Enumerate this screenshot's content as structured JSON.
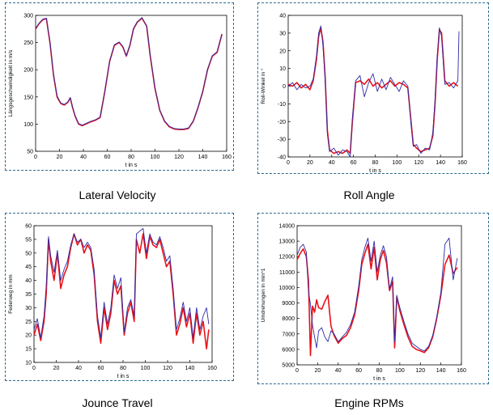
{
  "colors": {
    "frame": "#2e6a8e",
    "series_red": "#e8121a",
    "series_blue": "#2c2ca8",
    "series_purple": "#7a3a9a"
  },
  "captions": [
    "Lateral Velocity",
    "Roll Angle",
    "Jounce Travel",
    "Engine RPMs"
  ],
  "chart_data": [
    {
      "type": "line",
      "title": "Lateral Velocity",
      "xlabel": "t in s",
      "ylabel": "Längsgeschwindigkeit in m/s",
      "xlim": [
        0,
        160
      ],
      "ylim": [
        50,
        300
      ],
      "xticks": [
        0,
        20,
        40,
        60,
        80,
        100,
        120,
        140,
        160
      ],
      "yticks": [
        50,
        100,
        150,
        200,
        250,
        300
      ],
      "grid": false,
      "series": [
        {
          "color": "#e8121a",
          "x": [
            0,
            3,
            6,
            9,
            12,
            15,
            18,
            21,
            24,
            27,
            29,
            31,
            33,
            36,
            39,
            42,
            46,
            50,
            54,
            58,
            62,
            66,
            70,
            73,
            76,
            79,
            82,
            85,
            89,
            93,
            96,
            100,
            104,
            108,
            112,
            116,
            120,
            124,
            128,
            132,
            136,
            140,
            144,
            148,
            152,
            156
          ],
          "y": [
            275,
            285,
            292,
            294,
            250,
            190,
            150,
            138,
            135,
            140,
            148,
            130,
            115,
            100,
            97,
            100,
            104,
            107,
            112,
            160,
            215,
            245,
            250,
            242,
            225,
            245,
            275,
            287,
            295,
            280,
            225,
            165,
            125,
            105,
            95,
            91,
            90,
            90,
            92,
            105,
            130,
            160,
            200,
            225,
            232,
            265
          ]
        },
        {
          "color": "#2c2ca8",
          "x": [
            0,
            3,
            6,
            9,
            12,
            15,
            18,
            21,
            24,
            27,
            29,
            31,
            33,
            36,
            39,
            42,
            46,
            50,
            54,
            58,
            62,
            66,
            70,
            73,
            76,
            79,
            82,
            85,
            89,
            93,
            96,
            100,
            104,
            108,
            112,
            116,
            120,
            124,
            128,
            132,
            136,
            140,
            144,
            148,
            152,
            156
          ],
          "y": [
            276,
            286,
            293,
            295,
            252,
            192,
            152,
            139,
            136,
            141,
            149,
            131,
            116,
            101,
            98,
            101,
            105,
            108,
            113,
            161,
            216,
            246,
            251,
            243,
            226,
            246,
            276,
            288,
            296,
            281,
            227,
            166,
            126,
            106,
            96,
            92,
            91,
            91,
            93,
            106,
            131,
            161,
            201,
            226,
            233,
            266
          ]
        }
      ]
    },
    {
      "type": "line",
      "title": "Roll Angle",
      "xlabel": "t in s",
      "ylabel": "Roll-Winkel in °",
      "xlim": [
        0,
        160
      ],
      "ylim": [
        -40,
        40
      ],
      "xticks": [
        0,
        20,
        40,
        60,
        80,
        100,
        120,
        140,
        160
      ],
      "yticks": [
        -40,
        -30,
        -20,
        -10,
        0,
        10,
        20,
        30,
        40
      ],
      "grid": false,
      "series": [
        {
          "color": "#e8121a",
          "x": [
            0,
            4,
            8,
            12,
            16,
            20,
            23,
            26,
            28,
            30,
            32,
            34,
            36,
            38,
            42,
            46,
            50,
            54,
            57,
            59,
            62,
            66,
            70,
            74,
            78,
            82,
            86,
            90,
            94,
            98,
            102,
            106,
            110,
            113,
            115,
            118,
            122,
            126,
            130,
            133,
            135,
            137,
            139,
            141,
            144,
            148,
            152,
            156
          ],
          "y": [
            1,
            0,
            2,
            -1,
            1,
            -2,
            3,
            15,
            28,
            33,
            25,
            5,
            -25,
            -36,
            -38,
            -37,
            -38,
            -36,
            -38,
            -20,
            2,
            3,
            1,
            4,
            0,
            2,
            -1,
            1,
            3,
            0,
            2,
            1,
            -1,
            -20,
            -33,
            -35,
            -37,
            -36,
            -35,
            -28,
            -10,
            15,
            32,
            30,
            3,
            0,
            2,
            0
          ]
        },
        {
          "color": "#2c2ca8",
          "x": [
            0,
            4,
            8,
            12,
            16,
            20,
            23,
            26,
            28,
            30,
            32,
            34,
            36,
            38,
            42,
            46,
            50,
            54,
            57,
            59,
            62,
            66,
            70,
            74,
            78,
            82,
            86,
            90,
            94,
            98,
            102,
            106,
            110,
            113,
            115,
            118,
            122,
            126,
            130,
            133,
            135,
            137,
            139,
            141,
            144,
            148,
            152,
            156,
            157
          ],
          "y": [
            0,
            2,
            -2,
            1,
            -1,
            0,
            4,
            17,
            30,
            34,
            23,
            3,
            -27,
            -37,
            -35,
            -39,
            -36,
            -37,
            -40,
            -18,
            3,
            6,
            -6,
            2,
            7,
            -3,
            4,
            -2,
            5,
            1,
            -3,
            3,
            0,
            -22,
            -34,
            -33,
            -38,
            -35,
            -36,
            -26,
            -8,
            17,
            33,
            28,
            1,
            2,
            -1,
            3,
            31
          ]
        }
      ]
    },
    {
      "type": "line",
      "title": "Jounce Travel",
      "xlabel": "t in s",
      "ylabel": "Federweg in mm",
      "xlim": [
        0,
        160
      ],
      "ylim": [
        10,
        60
      ],
      "xticks": [
        0,
        20,
        40,
        60,
        80,
        100,
        120,
        140,
        160
      ],
      "yticks": [
        10,
        15,
        20,
        25,
        30,
        35,
        40,
        45,
        50,
        55,
        60
      ],
      "grid": false,
      "series": [
        {
          "color": "#e8121a",
          "x": [
            0,
            3,
            6,
            9,
            11,
            13,
            15,
            18,
            21,
            24,
            27,
            30,
            33,
            36,
            39,
            42,
            45,
            48,
            51,
            54,
            57,
            60,
            63,
            66,
            69,
            72,
            75,
            78,
            81,
            84,
            87,
            90,
            92,
            95,
            98,
            101,
            104,
            107,
            110,
            113,
            116,
            119,
            122,
            125,
            128,
            131,
            134,
            137,
            140,
            143,
            146,
            149,
            152,
            155,
            157
          ],
          "y": [
            20,
            24,
            18,
            25,
            35,
            55,
            47,
            40,
            50,
            37,
            42,
            45,
            52,
            57,
            53,
            55,
            50,
            53,
            51,
            42,
            25,
            17,
            30,
            22,
            28,
            40,
            35,
            38,
            20,
            28,
            32,
            25,
            55,
            50,
            57,
            48,
            56,
            53,
            52,
            55,
            50,
            45,
            47,
            35,
            20,
            24,
            30,
            23,
            28,
            17,
            28,
            20,
            25,
            15,
            22
          ]
        },
        {
          "color": "#2c2ca8",
          "x": [
            0,
            3,
            6,
            9,
            11,
            13,
            15,
            18,
            21,
            24,
            27,
            30,
            33,
            36,
            39,
            42,
            45,
            48,
            51,
            54,
            57,
            60,
            63,
            66,
            69,
            72,
            75,
            78,
            81,
            84,
            87,
            90,
            92,
            95,
            98,
            101,
            104,
            107,
            110,
            113,
            116,
            119,
            122,
            125,
            128,
            131,
            134,
            137,
            140,
            143,
            146,
            149,
            152,
            155,
            157
          ],
          "y": [
            22,
            26,
            19,
            27,
            38,
            56,
            49,
            43,
            51,
            40,
            44,
            47,
            53,
            57,
            54,
            55,
            52,
            54,
            52,
            44,
            27,
            19,
            32,
            24,
            30,
            42,
            37,
            41,
            21,
            30,
            33,
            27,
            57,
            58,
            59,
            50,
            57,
            54,
            53,
            56,
            52,
            47,
            49,
            37,
            22,
            26,
            32,
            25,
            30,
            19,
            30,
            22,
            27,
            30,
            24
          ]
        }
      ]
    },
    {
      "type": "line",
      "title": "Engine RPMs",
      "xlabel": "t in s",
      "ylabel": "Umdrehungen in min^1",
      "xlim": [
        0,
        160
      ],
      "ylim": [
        5000,
        14000
      ],
      "xticks": [
        0,
        20,
        40,
        60,
        80,
        100,
        120,
        140,
        160
      ],
      "yticks": [
        5000,
        6000,
        7000,
        8000,
        9000,
        10000,
        11000,
        12000,
        13000,
        14000
      ],
      "grid": false,
      "series": [
        {
          "color": "#e8121a",
          "x": [
            0,
            3,
            6,
            9,
            11,
            13,
            15,
            17,
            19,
            21,
            24,
            27,
            30,
            33,
            36,
            40,
            44,
            48,
            52,
            56,
            60,
            63,
            66,
            69,
            72,
            75,
            78,
            81,
            84,
            87,
            90,
            93,
            95,
            97,
            100,
            104,
            108,
            112,
            116,
            120,
            124,
            128,
            132,
            136,
            140,
            144,
            148,
            152,
            156
          ],
          "y": [
            11800,
            12200,
            12500,
            12000,
            10500,
            5600,
            8800,
            8400,
            9200,
            8700,
            8600,
            9100,
            9500,
            7500,
            6900,
            6400,
            6700,
            6900,
            7400,
            8200,
            9800,
            11500,
            12200,
            12800,
            11200,
            12600,
            10500,
            11800,
            12400,
            11600,
            9800,
            10400,
            6100,
            9400,
            8500,
            7600,
            6800,
            6200,
            6000,
            5900,
            5800,
            6100,
            6800,
            8000,
            9500,
            11500,
            12100,
            10900,
            11300
          ]
        },
        {
          "color": "#2c2ca8",
          "x": [
            0,
            3,
            6,
            9,
            11,
            13,
            15,
            17,
            19,
            21,
            24,
            27,
            30,
            33,
            36,
            40,
            44,
            48,
            52,
            56,
            60,
            63,
            66,
            69,
            72,
            75,
            78,
            81,
            84,
            87,
            90,
            93,
            95,
            97,
            100,
            104,
            108,
            112,
            116,
            120,
            124,
            128,
            132,
            136,
            140,
            144,
            148,
            152,
            156
          ],
          "y": [
            12100,
            12600,
            12800,
            12300,
            9800,
            8900,
            7600,
            6800,
            6100,
            7200,
            7400,
            6800,
            6500,
            7200,
            7000,
            6500,
            6800,
            7100,
            7600,
            8400,
            10100,
            11800,
            12600,
            13200,
            11700,
            13000,
            11000,
            12100,
            12700,
            12000,
            9900,
            10700,
            6500,
            9500,
            8700,
            7800,
            7000,
            6400,
            6200,
            6000,
            5900,
            6200,
            6900,
            8100,
            9700,
            12800,
            13200,
            10500,
            11900
          ]
        }
      ]
    }
  ]
}
